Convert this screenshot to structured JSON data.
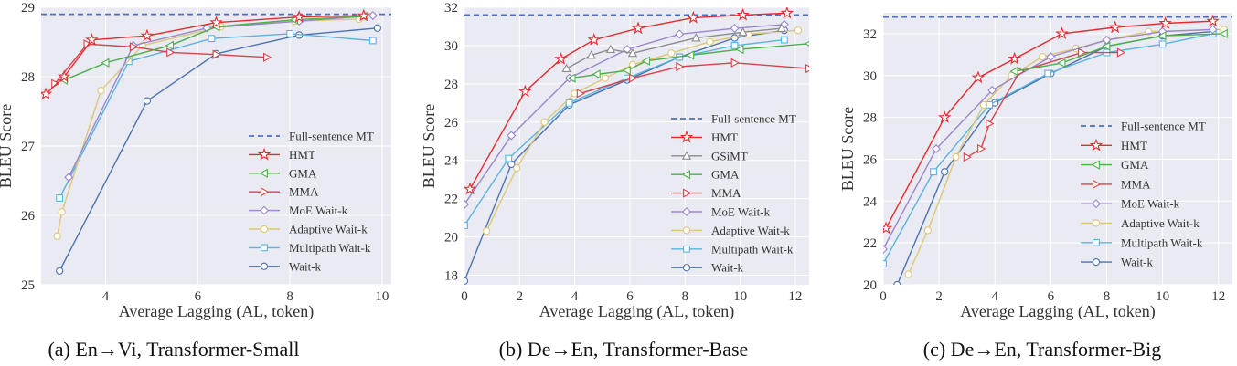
{
  "chart_data": [
    {
      "type": "line",
      "caption": "(a) En→Vi, Transformer-Small",
      "xlabel": "Average Lagging (AL, token)",
      "ylabel": "BLEU Score",
      "xlim": [
        2.6,
        10.2
      ],
      "ylim": [
        25,
        29
      ],
      "xticks": [
        4,
        6,
        8,
        10
      ],
      "yticks": [
        25,
        26,
        27,
        28,
        29
      ],
      "grid": true,
      "legend_position": "lower-right",
      "reference": {
        "name": "Full-sentence MT",
        "value": 28.9
      },
      "series": [
        {
          "name": "HMT",
          "x": [
            2.7,
            3.1,
            3.7,
            4.9,
            6.4,
            8.2,
            9.6
          ],
          "y": [
            27.75,
            28.0,
            28.53,
            28.59,
            28.78,
            28.86,
            28.88
          ]
        },
        {
          "name": "GMA",
          "x": [
            3.1,
            4.0,
            5.4,
            6.4,
            8.1,
            9.6
          ],
          "y": [
            27.95,
            28.2,
            28.45,
            28.72,
            28.82,
            28.87
          ]
        },
        {
          "name": "MMA",
          "x": [
            2.9,
            3.6,
            4.6,
            5.4,
            6.4,
            7.5
          ],
          "y": [
            27.9,
            28.47,
            28.43,
            28.35,
            28.32,
            28.28
          ]
        },
        {
          "name": "MoE Wait-k",
          "x": [
            3.2,
            4.6,
            6.2,
            8.2,
            9.8
          ],
          "y": [
            26.55,
            28.45,
            28.7,
            28.8,
            28.88
          ]
        },
        {
          "name": "Adaptive Wait-k",
          "x": [
            2.95,
            3.05,
            3.9,
            4.8,
            6.5,
            8.1,
            9.5
          ],
          "y": [
            25.7,
            26.05,
            27.8,
            28.45,
            28.72,
            28.8,
            28.83
          ]
        },
        {
          "name": "Multipath Wait-k",
          "x": [
            3.0,
            4.5,
            6.3,
            8.0,
            9.8
          ],
          "y": [
            26.25,
            28.22,
            28.55,
            28.62,
            28.52
          ]
        },
        {
          "name": "Wait-k",
          "x": [
            3.0,
            4.9,
            6.4,
            8.2,
            9.9
          ],
          "y": [
            25.2,
            27.65,
            28.33,
            28.6,
            28.7
          ]
        }
      ]
    },
    {
      "type": "line",
      "caption": "(b) De→En, Transformer-Base",
      "xlabel": "Average Lagging (AL, token)",
      "ylabel": "BLEU Score",
      "xlim": [
        0,
        12.5
      ],
      "ylim": [
        17.5,
        32
      ],
      "xticks": [
        0,
        2,
        4,
        6,
        8,
        10,
        12
      ],
      "yticks": [
        18,
        20,
        22,
        24,
        26,
        28,
        30,
        32
      ],
      "grid": true,
      "legend_position": "lower-right",
      "reference": {
        "name": "Full-sentence MT",
        "value": 31.6
      },
      "series": [
        {
          "name": "HMT",
          "x": [
            0.2,
            2.2,
            3.5,
            4.7,
            6.3,
            8.3,
            10.1,
            11.7
          ],
          "y": [
            22.5,
            27.6,
            29.3,
            30.3,
            30.9,
            31.45,
            31.6,
            31.7
          ]
        },
        {
          "name": "GSiMT",
          "x": [
            3.7,
            4.6,
            5.3,
            6.1,
            8.4,
            10.1,
            11.5
          ],
          "y": [
            28.8,
            29.5,
            29.8,
            29.6,
            30.4,
            30.7,
            30.9
          ]
        },
        {
          "name": "GMA",
          "x": [
            3.9,
            4.8,
            5.9,
            6.6,
            8.2,
            10.0,
            12.5
          ],
          "y": [
            28.3,
            28.5,
            28.7,
            29.2,
            29.5,
            29.8,
            30.1
          ]
        },
        {
          "name": "MMA",
          "x": [
            4.2,
            6.1,
            7.8,
            9.8,
            12.5
          ],
          "y": [
            27.5,
            28.3,
            28.9,
            29.1,
            28.8
          ]
        },
        {
          "name": "MoE Wait-k",
          "x": [
            0,
            1.7,
            3.8,
            5.9,
            7.8,
            9.8,
            11.6
          ],
          "y": [
            21.7,
            25.3,
            28.3,
            29.8,
            30.6,
            30.9,
            31.1
          ]
        },
        {
          "name": "Adaptive Wait-k",
          "x": [
            0.8,
            1.9,
            2.9,
            4.0,
            5.1,
            6.1,
            7.5,
            8.9,
            10.3,
            12.1
          ],
          "y": [
            20.3,
            23.6,
            26.0,
            27.5,
            28.3,
            29.0,
            29.6,
            30.2,
            30.6,
            30.8
          ]
        },
        {
          "name": "Multipath Wait-k",
          "x": [
            0,
            1.6,
            3.8,
            5.9,
            7.8,
            9.8,
            11.6
          ],
          "y": [
            20.6,
            24.1,
            27.0,
            28.3,
            29.4,
            30.0,
            30.3
          ]
        },
        {
          "name": "Wait-k",
          "x": [
            0,
            1.7,
            3.8,
            5.9,
            7.8,
            9.8,
            11.6
          ],
          "y": [
            17.7,
            23.8,
            26.9,
            28.2,
            29.4,
            30.4,
            30.8
          ]
        }
      ]
    },
    {
      "type": "line",
      "caption": "(c) De→En, Transformer-Big",
      "xlabel": "Average Lagging (AL, token)",
      "ylabel": "BLEU Score",
      "xlim": [
        0,
        12.5
      ],
      "ylim": [
        20,
        33
      ],
      "xticks": [
        0,
        2,
        4,
        6,
        8,
        10,
        12
      ],
      "yticks": [
        20,
        22,
        24,
        26,
        28,
        30,
        32
      ],
      "grid": true,
      "legend_position": "lower-right",
      "reference": {
        "name": "Full-sentence MT",
        "value": 32.8
      },
      "series": [
        {
          "name": "HMT",
          "x": [
            0.1,
            2.2,
            3.4,
            4.7,
            6.4,
            8.3,
            10.1,
            11.8
          ],
          "y": [
            22.7,
            28.0,
            29.9,
            30.8,
            32.0,
            32.3,
            32.5,
            32.6
          ]
        },
        {
          "name": "GMA",
          "x": [
            4.7,
            6.4,
            8.0,
            10.0,
            12.2
          ],
          "y": [
            30.2,
            30.6,
            31.4,
            31.9,
            32.0
          ]
        },
        {
          "name": "MMA",
          "x": [
            3.0,
            3.5,
            3.8,
            4.9,
            7.1,
            8.5
          ],
          "y": [
            26.1,
            26.5,
            27.7,
            30.2,
            31.1,
            31.1
          ]
        },
        {
          "name": "MoE Wait-k",
          "x": [
            0,
            1.9,
            3.9,
            6.0,
            8.0,
            10.0,
            11.8
          ],
          "y": [
            21.7,
            26.5,
            29.3,
            30.9,
            31.7,
            32.1,
            32.2
          ]
        },
        {
          "name": "Adaptive Wait-k",
          "x": [
            0.9,
            1.6,
            2.6,
            3.6,
            4.6,
            5.7,
            6.9,
            8.0,
            9.5,
            12.2
          ],
          "y": [
            20.5,
            22.6,
            26.1,
            28.6,
            30.0,
            30.9,
            31.3,
            31.7,
            32.1,
            32.2
          ]
        },
        {
          "name": "Multipath Wait-k",
          "x": [
            0,
            1.8,
            3.8,
            5.9,
            8.0,
            10.0,
            11.8
          ],
          "y": [
            21.0,
            25.4,
            28.6,
            30.1,
            31.1,
            31.5,
            32.0
          ]
        },
        {
          "name": "Wait-k",
          "x": [
            0.5,
            2.2,
            4.0,
            6.0,
            8.0,
            10.0,
            11.8
          ],
          "y": [
            20.0,
            25.4,
            28.7,
            30.1,
            31.4,
            31.9,
            32.1
          ]
        }
      ]
    }
  ],
  "styles": {
    "Full-sentence MT": {
      "color": "#4a6fc3",
      "marker": "dash"
    },
    "HMT": {
      "color": "#e8282d",
      "marker": "star"
    },
    "GSiMT": {
      "color": "#8c8c8c",
      "marker": "triangle-up"
    },
    "GMA": {
      "color": "#4daf4a",
      "marker": "triangle-left"
    },
    "MMA": {
      "color": "#d6434a",
      "marker": "triangle-right"
    },
    "MoE Wait-k": {
      "color": "#9a86cf",
      "marker": "diamond"
    },
    "Adaptive Wait-k": {
      "color": "#ddc777",
      "marker": "circle"
    },
    "Multipath Wait-k": {
      "color": "#5ab4e0",
      "marker": "square"
    },
    "Wait-k": {
      "color": "#4c72b0",
      "marker": "circle"
    }
  }
}
